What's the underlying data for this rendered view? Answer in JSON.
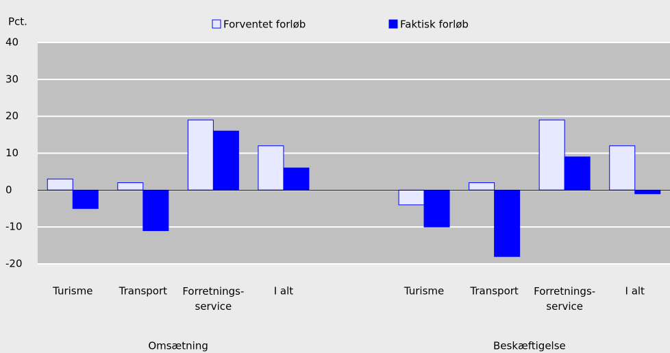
{
  "chart_data": {
    "type": "bar",
    "y_label": "Pct.",
    "categories": [
      "Turisme",
      "Transport",
      "Forretnings-\nservice",
      "I alt",
      null,
      "Turisme",
      "Transport",
      "Forretnings-\nservice",
      "I alt"
    ],
    "group_labels": [
      "Omsætning",
      "Beskæftigelse"
    ],
    "series": [
      {
        "name": "Forventet forløb",
        "color": "#e6e9ff",
        "values": [
          3,
          2,
          19,
          12,
          null,
          -4,
          2,
          19,
          12
        ]
      },
      {
        "name": "Faktisk forløb",
        "color": "#0000ff",
        "values": [
          -5,
          -11,
          16,
          6,
          null,
          -10,
          -18,
          9,
          -1
        ]
      }
    ],
    "ylim": [
      -20,
      40
    ],
    "yticks": [
      -20,
      -10,
      0,
      10,
      20,
      30,
      40
    ],
    "grid": true
  }
}
